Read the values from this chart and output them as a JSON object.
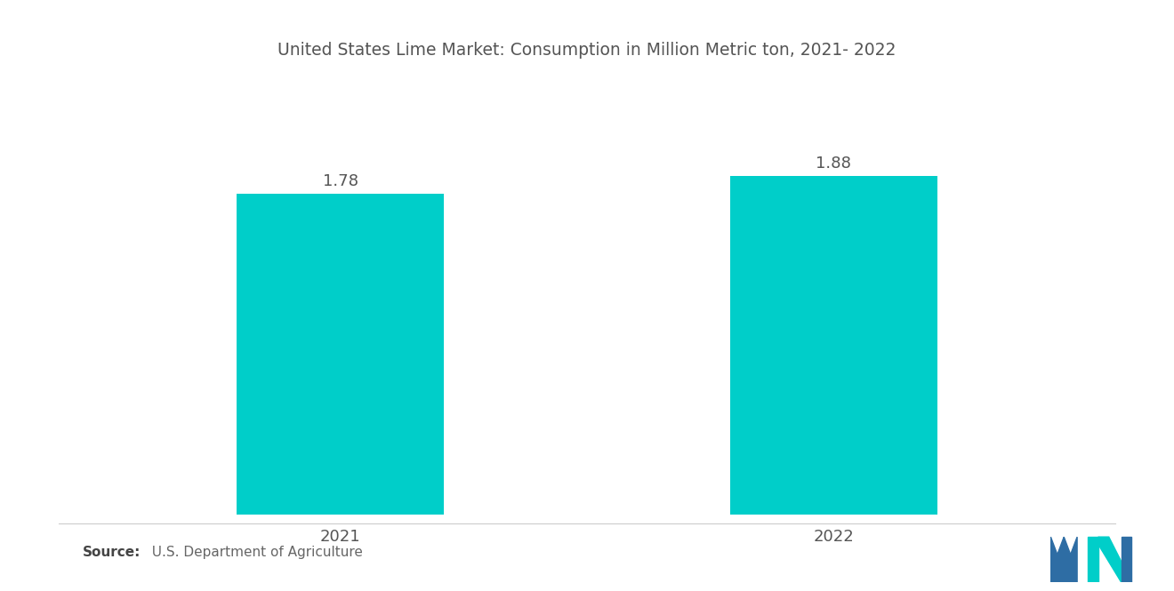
{
  "title": "United States Lime Market: Consumption in Million Metric ton, 2021- 2022",
  "categories": [
    "2021",
    "2022"
  ],
  "values": [
    1.78,
    1.88
  ],
  "bar_color": "#00CEC9",
  "value_labels": [
    "1.78",
    "1.88"
  ],
  "source_bold": "Source:",
  "source_text": "  U.S. Department of Agriculture",
  "background_color": "#ffffff",
  "title_fontsize": 13.5,
  "label_fontsize": 13,
  "value_fontsize": 13,
  "source_fontsize": 11,
  "ylim": [
    0,
    2.3
  ],
  "xlim": [
    0,
    2
  ],
  "bar_positions": [
    0.5,
    1.5
  ],
  "bar_width": 0.42,
  "title_color": "#555555",
  "tick_color": "#555555",
  "value_color": "#555555",
  "logo_blue": "#2E6DA4",
  "logo_teal": "#00CEC9"
}
